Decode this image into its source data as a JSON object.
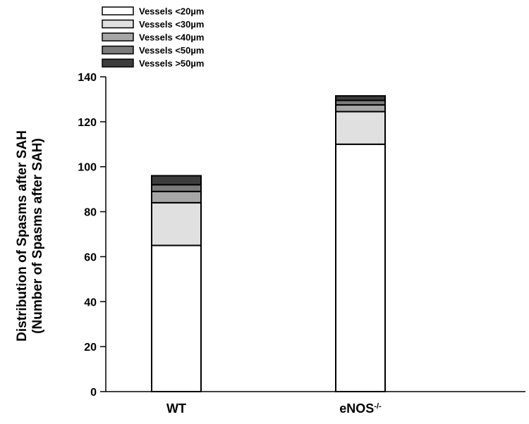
{
  "chart_data": {
    "type": "bar",
    "stacked": true,
    "categories": [
      "WT",
      "eNOS"
    ],
    "category_superscripts": [
      "",
      "-/-"
    ],
    "ylabel_line1": "Distribution of Spasms after SAH",
    "ylabel_line2": "(Number of Spasms after SAH)",
    "xlabel": "",
    "ylim": [
      0,
      140
    ],
    "yticks": [
      0,
      20,
      40,
      60,
      80,
      100,
      120,
      140
    ],
    "grid": false,
    "legend_position": "top-left",
    "series": [
      {
        "name": "Vessels <20µm",
        "color": "#ffffff",
        "values": [
          65,
          110
        ]
      },
      {
        "name": "Vessels <30µm",
        "color": "#e0e0e0",
        "values": [
          19,
          14.5
        ]
      },
      {
        "name": "Vessels <40µm",
        "color": "#a6a6a6",
        "values": [
          5,
          3
        ]
      },
      {
        "name": "Vessels <50µm",
        "color": "#7b7b7b",
        "values": [
          3,
          2
        ]
      },
      {
        "name": "Vessels >50µm",
        "color": "#3d3d3d",
        "values": [
          4,
          2
        ]
      }
    ]
  }
}
